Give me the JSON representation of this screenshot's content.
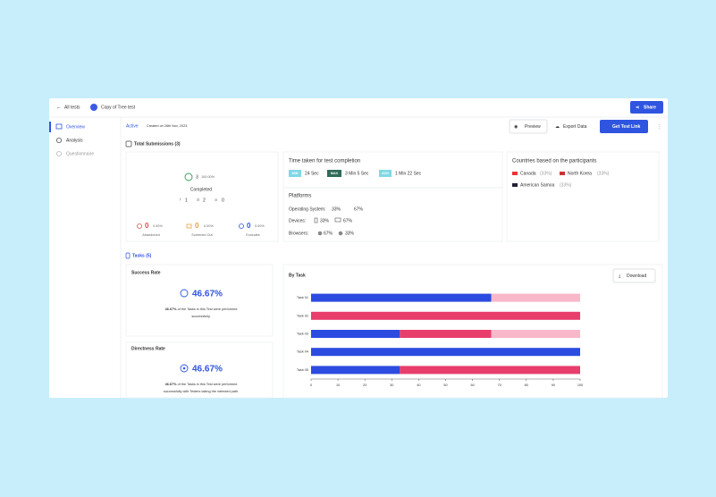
{
  "header": {
    "back": "All tests",
    "test_name": "Copy of Tree test",
    "share": "Share"
  },
  "sidebar": {
    "items": [
      "Overview",
      "Analysis",
      "Questionnaire"
    ]
  },
  "status": {
    "state": "Active",
    "created": "Created on 26th Nov, 2023"
  },
  "actions": [
    "Preview",
    "Export Data",
    "Get Test Link"
  ],
  "submissions": {
    "title": "Total Submissions (3)",
    "count": "3",
    "percent": "100.00%",
    "label": "Completed",
    "counts": [
      "1",
      "2",
      "0"
    ],
    "stats": [
      {
        "value": "0",
        "percent": "0.00%",
        "label": "Abandoned"
      },
      {
        "value": "0",
        "percent": "0.00%",
        "label": "Screened Out"
      },
      {
        "value": "0",
        "percent": "0.00%",
        "label": "Excludes"
      }
    ]
  },
  "time": {
    "title": "Time taken for test completion",
    "badges": [
      {
        "label": "MIN",
        "value": "24 Sec"
      },
      {
        "label": "MAX",
        "value": "3 Min 5 Sec"
      },
      {
        "label": "AVG",
        "value": "1 Min 22 Sec"
      }
    ]
  },
  "platforms": {
    "title": "Platforms",
    "rows": [
      {
        "label": "Operating System:",
        "values": [
          "33%",
          "67%"
        ]
      },
      {
        "label": "Devices:",
        "values": [
          "33%",
          "67%"
        ]
      },
      {
        "label": "Browsers:",
        "values": [
          "67%",
          "33%"
        ]
      }
    ]
  },
  "countries": {
    "title": "Countries based on the participants",
    "items": [
      {
        "name": "Canada",
        "share": "(33%)"
      },
      {
        "name": "North Korea",
        "share": "(33%)"
      },
      {
        "name": "American Samoa",
        "share": "(33%)"
      }
    ]
  },
  "tasks": {
    "title": "Tasks (5)"
  },
  "success": {
    "title": "Success Rate",
    "value": "46.67%",
    "text_value": "46.67%",
    "text": [
      "of the Tasks in this Test were performed",
      "successfully."
    ]
  },
  "directness": {
    "title": "Directness Rate",
    "value": "46.67%",
    "text_value": "46.67%",
    "text": [
      "of the Tasks in this Test were performed",
      "successfully with Testers taking the intended path."
    ]
  },
  "chart_panel": {
    "download": "Download"
  },
  "chart_data": {
    "type": "bar",
    "orientation": "horizontal",
    "stacked": true,
    "title": "By Task",
    "categories": [
      "Task 01",
      "Task 02",
      "Task 03",
      "Task 04",
      "Task 05"
    ],
    "series": [
      {
        "color": "#2c4be0",
        "values": [
          67,
          0,
          33,
          100,
          33
        ]
      },
      {
        "color": "#e83e6c",
        "values": [
          0,
          100,
          34,
          0,
          67
        ]
      },
      {
        "color": "#f8b8c9",
        "values": [
          33,
          0,
          33,
          0,
          0
        ]
      }
    ],
    "xlim": [
      0,
      100
    ],
    "xticks": [
      0,
      10,
      20,
      30,
      40,
      50,
      60,
      70,
      80,
      90,
      100
    ]
  }
}
